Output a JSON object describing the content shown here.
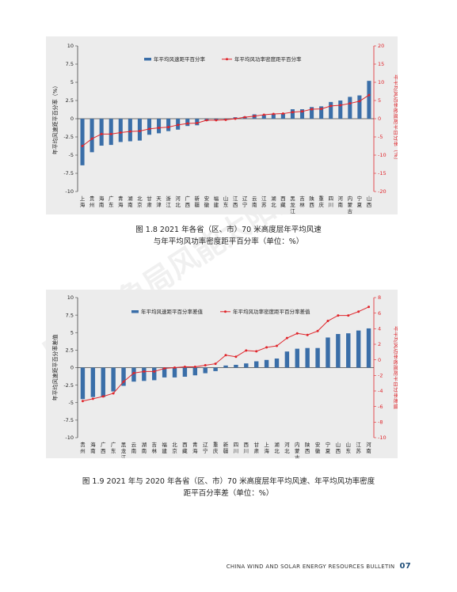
{
  "chart_data": [
    {
      "type": "bar",
      "caption_line1": "图 1.8   2021 年各省（区、市）70 米高度层年平均风速",
      "caption_line2": "与年平均风功率密度距平百分率（单位：%）",
      "ylabel_left": "年平均风速距平百分率（%）",
      "ylabel_right": "年平均风功率密度距平百分率（%）",
      "ylim_left": [
        -10,
        10
      ],
      "ylim_right": [
        -20,
        20
      ],
      "yticks_left": [
        10,
        7.5,
        5,
        2.5,
        0,
        -2.5,
        -5,
        -7.5,
        -10
      ],
      "yticks_right": [
        20,
        15,
        10,
        5,
        0,
        -5,
        -10,
        -15,
        -20
      ],
      "legend": [
        "年平均风速距平百分率",
        "年平均风功率密度距平百分率"
      ],
      "categories": [
        "上海",
        "贵州",
        "海南",
        "广东",
        "青海",
        "湖南",
        "北京",
        "甘肃",
        "天津",
        "浙江",
        "河北",
        "广西",
        "新疆",
        "安徽",
        "福建",
        "山东",
        "江西",
        "辽宁",
        "云南",
        "江苏",
        "湖北",
        "西藏",
        "黑龙江",
        "吉林",
        "陕西",
        "重庆",
        "四川",
        "河南",
        "内蒙古",
        "宁夏",
        "山西"
      ],
      "series": [
        {
          "name": "年平均风速距平百分率",
          "kind": "bar",
          "axis": "left",
          "values": [
            -6.4,
            -4.6,
            -3.7,
            -3.6,
            -3.2,
            -3.1,
            -3.0,
            -2.2,
            -2.0,
            -1.7,
            -1.5,
            -1.0,
            -0.9,
            -0.3,
            -0.2,
            -0.1,
            0.2,
            0.3,
            0.6,
            0.5,
            0.7,
            0.7,
            1.3,
            1.3,
            1.6,
            1.7,
            2.3,
            2.5,
            3.0,
            3.2,
            5.2
          ]
        },
        {
          "name": "年平均风功率密度距平百分率",
          "kind": "line",
          "axis": "right",
          "values": [
            -7.5,
            -5.5,
            -4.2,
            -4.2,
            -3.8,
            -3.5,
            -3.4,
            -2.8,
            -2.5,
            -2.3,
            -1.7,
            -1.3,
            -1.2,
            -0.4,
            -0.4,
            -0.3,
            0.0,
            0.4,
            0.7,
            1.1,
            1.3,
            1.4,
            1.8,
            2.0,
            2.6,
            2.7,
            3.5,
            3.7,
            4.2,
            4.8,
            6.5
          ]
        }
      ],
      "colors": {
        "bar": "#3a6ea8",
        "line": "#e0252b"
      }
    },
    {
      "type": "bar",
      "caption_line1": "图 1.9   2021 年与 2020 年各省（区、市）70 米高度层年平均风速、年平均风功率密度",
      "caption_line2": "距平百分率差（单位：%）",
      "ylabel_left": "年平均风速距平百分率差值",
      "ylabel_right": "年平均风功率密度距平百分率差值",
      "ylim_left": [
        -10,
        10
      ],
      "ylim_right": [
        -10,
        8
      ],
      "yticks_left": [
        10,
        7.5,
        5,
        2.5,
        0,
        -2.5,
        -5,
        -7.5,
        -10
      ],
      "yticks_right": [
        8,
        6,
        4,
        2,
        0,
        -2,
        -4,
        -6,
        -8,
        -10
      ],
      "legend": [
        "年平均风速距平百分率差值",
        "年平均风功率密度距平百分率差值"
      ],
      "categories": [
        "贵州",
        "海南",
        "广西",
        "广东",
        "黑龙江",
        "云南",
        "湖南",
        "吉林",
        "福建",
        "北京",
        "西藏",
        "青海",
        "辽宁",
        "重庆",
        "新疆",
        "四川",
        "西川",
        "甘肃",
        "上海",
        "湖北",
        "河北",
        "内蒙古",
        "陕西",
        "安徽",
        "宁夏",
        "山西",
        "山东",
        "江苏",
        "河南"
      ],
      "series": [
        {
          "name": "年平均风速距平百分率差值",
          "kind": "bar",
          "axis": "left",
          "values": [
            -4.5,
            -4.2,
            -4.2,
            -3.4,
            -2.6,
            -2.0,
            -1.9,
            -1.8,
            -1.4,
            -1.4,
            -1.3,
            -1.1,
            -0.8,
            -0.5,
            0.3,
            0.4,
            0.6,
            0.9,
            1.1,
            1.3,
            2.3,
            2.7,
            2.8,
            2.8,
            4.3,
            4.8,
            4.9,
            5.3,
            5.6
          ]
        },
        {
          "name": "年平均风功率密度距平百分率差值",
          "kind": "line",
          "axis": "right",
          "values": [
            -5.3,
            -5.0,
            -4.7,
            -4.3,
            -2.8,
            -1.7,
            -1.5,
            -1.5,
            -1.1,
            -1.0,
            -0.9,
            -0.9,
            -0.7,
            -0.5,
            0.6,
            0.4,
            1.2,
            1.1,
            1.6,
            1.8,
            2.8,
            3.4,
            3.2,
            3.7,
            5.0,
            5.7,
            5.7,
            6.2,
            6.8
          ]
        }
      ],
      "colors": {
        "bar": "#3a6ea8",
        "line": "#e0252b"
      }
    }
  ],
  "footer": {
    "text": "CHINA WIND AND SOLAR ENERGY RESOURCES BULLETIN",
    "page": "07"
  },
  "watermark": "中国气象局风能太阳能中心"
}
